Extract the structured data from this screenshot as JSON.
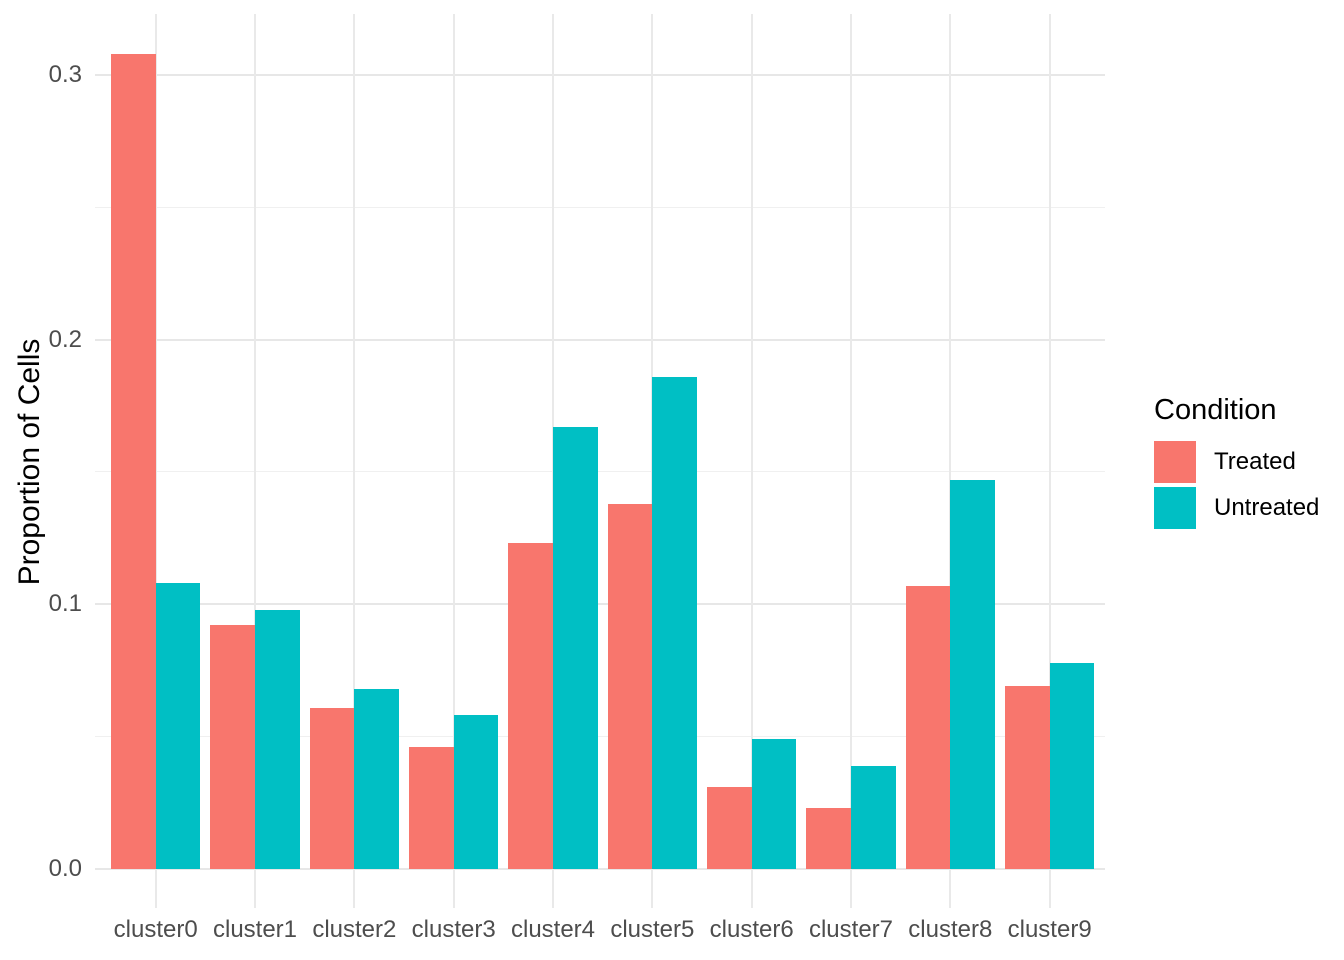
{
  "chart_data": {
    "type": "bar",
    "title": "",
    "xlabel": "",
    "ylabel": "Proportion of Cells",
    "legend_title": "Condition",
    "legend_position": "right",
    "grid": true,
    "background_color": "#FFFFFF",
    "axis_text_color": "#4D4D4D",
    "categories": [
      "cluster0",
      "cluster1",
      "cluster2",
      "cluster3",
      "cluster4",
      "cluster5",
      "cluster6",
      "cluster7",
      "cluster8",
      "cluster9"
    ],
    "series": [
      {
        "name": "Treated",
        "color": "#F8766D",
        "values": [
          0.308,
          0.092,
          0.061,
          0.046,
          0.123,
          0.138,
          0.031,
          0.023,
          0.107,
          0.069
        ]
      },
      {
        "name": "Untreated",
        "color": "#00BFC4",
        "values": [
          0.108,
          0.098,
          0.068,
          0.058,
          0.167,
          0.186,
          0.049,
          0.039,
          0.147,
          0.078
        ]
      }
    ],
    "y_axis": {
      "ticks": [
        {
          "value": 0.0,
          "label": "0.0"
        },
        {
          "value": 0.1,
          "label": "0.1"
        },
        {
          "value": 0.2,
          "label": "0.2"
        },
        {
          "value": 0.3,
          "label": "0.3"
        }
      ],
      "minor_ticks": [
        0.05,
        0.15,
        0.25
      ],
      "range": [
        -0.015,
        0.323
      ]
    }
  }
}
